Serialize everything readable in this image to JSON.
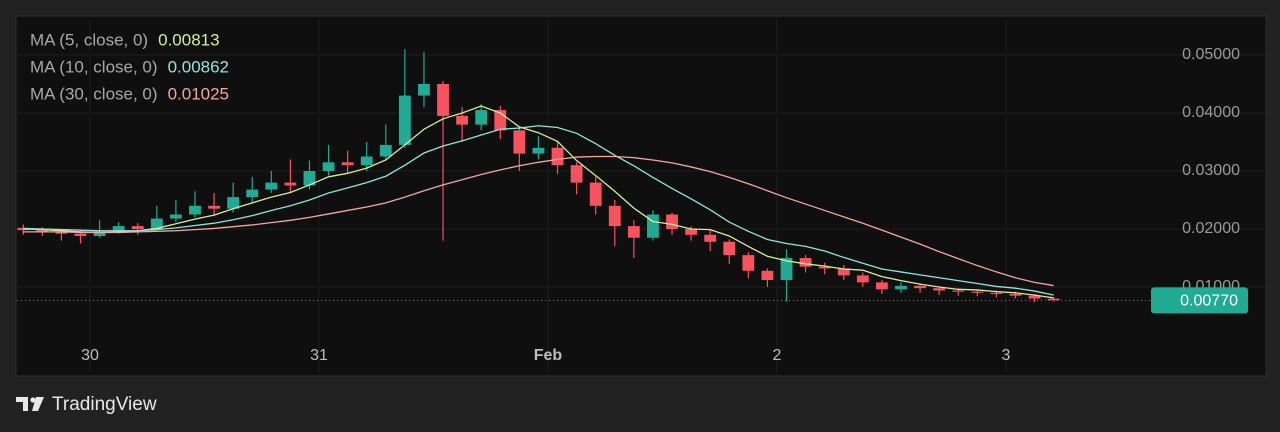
{
  "brand": "TradingView",
  "chart_data": {
    "type": "candlestick",
    "x": [
      -7,
      -5,
      -3,
      -1,
      1,
      3,
      5,
      7,
      9,
      11,
      13,
      15,
      17,
      19,
      21,
      23,
      25,
      27,
      29,
      31,
      33,
      35,
      37,
      39,
      41,
      43,
      45,
      47,
      49,
      51,
      53,
      55,
      57,
      59,
      61,
      63,
      65,
      67,
      69,
      71,
      73,
      75,
      77,
      79,
      81,
      83,
      85,
      87,
      89,
      91,
      93,
      95,
      97,
      99,
      101
    ],
    "open": [
      0.0202,
      0.0198,
      0.0195,
      0.0192,
      0.0188,
      0.0196,
      0.0205,
      0.02,
      0.0218,
      0.0225,
      0.024,
      0.0235,
      0.0255,
      0.0268,
      0.028,
      0.0275,
      0.03,
      0.0315,
      0.031,
      0.0325,
      0.0345,
      0.043,
      0.045,
      0.0395,
      0.038,
      0.0405,
      0.037,
      0.033,
      0.034,
      0.031,
      0.028,
      0.024,
      0.0205,
      0.0185,
      0.0225,
      0.02,
      0.019,
      0.0178,
      0.0155,
      0.0128,
      0.0112,
      0.015,
      0.0135,
      0.0132,
      0.012,
      0.0108,
      0.0096,
      0.0102,
      0.0098,
      0.0094,
      0.0092,
      0.009,
      0.0088,
      0.0085,
      0.008
    ],
    "high": [
      0.0208,
      0.0203,
      0.02,
      0.0197,
      0.0215,
      0.0212,
      0.021,
      0.024,
      0.025,
      0.0265,
      0.0262,
      0.028,
      0.029,
      0.03,
      0.032,
      0.0318,
      0.0345,
      0.0335,
      0.035,
      0.038,
      0.051,
      0.0505,
      0.0455,
      0.041,
      0.0415,
      0.0412,
      0.0375,
      0.036,
      0.035,
      0.0315,
      0.029,
      0.025,
      0.0215,
      0.0232,
      0.0228,
      0.0205,
      0.0198,
      0.0182,
      0.016,
      0.0132,
      0.0165,
      0.0155,
      0.0142,
      0.0138,
      0.0125,
      0.0112,
      0.0108,
      0.0105,
      0.01,
      0.0097,
      0.0096,
      0.0094,
      0.0092,
      0.0088,
      0.0082
    ],
    "low": [
      0.019,
      0.0188,
      0.018,
      0.0175,
      0.0185,
      0.0192,
      0.019,
      0.0198,
      0.0212,
      0.022,
      0.0222,
      0.0228,
      0.0245,
      0.0262,
      0.0262,
      0.0268,
      0.0292,
      0.0295,
      0.03,
      0.0318,
      0.034,
      0.041,
      0.018,
      0.035,
      0.037,
      0.0355,
      0.03,
      0.032,
      0.0295,
      0.026,
      0.0225,
      0.017,
      0.015,
      0.018,
      0.019,
      0.018,
      0.0162,
      0.014,
      0.0115,
      0.01,
      0.0075,
      0.0125,
      0.0122,
      0.0112,
      0.01,
      0.0088,
      0.009,
      0.009,
      0.0086,
      0.0085,
      0.0084,
      0.0082,
      0.008,
      0.0074,
      0.0075
    ],
    "close": [
      0.0198,
      0.0195,
      0.0192,
      0.0188,
      0.0196,
      0.0205,
      0.02,
      0.0218,
      0.0225,
      0.024,
      0.0235,
      0.0255,
      0.0268,
      0.028,
      0.0275,
      0.03,
      0.0315,
      0.031,
      0.0325,
      0.0345,
      0.043,
      0.045,
      0.0395,
      0.038,
      0.0405,
      0.037,
      0.033,
      0.034,
      0.031,
      0.028,
      0.024,
      0.0205,
      0.0185,
      0.0225,
      0.02,
      0.019,
      0.0178,
      0.0155,
      0.0128,
      0.0112,
      0.015,
      0.0135,
      0.0132,
      0.012,
      0.0108,
      0.0096,
      0.0102,
      0.0098,
      0.0094,
      0.0092,
      0.009,
      0.0088,
      0.0085,
      0.008,
      0.0077
    ],
    "up_color": "#22ab94",
    "down_color": "#f7525f",
    "last_price_label": "0.00770",
    "series": [
      {
        "name": "MA (5, close, 0)",
        "color": "#d6ed9b",
        "values": [
          0.02,
          0.0199,
          0.0197,
          0.0195,
          0.0194,
          0.0195,
          0.0197,
          0.0201,
          0.0209,
          0.0217,
          0.0224,
          0.0235,
          0.0245,
          0.0255,
          0.0263,
          0.0276,
          0.029,
          0.0296,
          0.0305,
          0.0319,
          0.0345,
          0.0372,
          0.039,
          0.04,
          0.0412,
          0.04,
          0.0376,
          0.0366,
          0.0351,
          0.0318,
          0.0292,
          0.0265,
          0.0236,
          0.0213,
          0.0208,
          0.02,
          0.0199,
          0.0188,
          0.017,
          0.0153,
          0.0145,
          0.014,
          0.0136,
          0.0131,
          0.0129,
          0.0118,
          0.0111,
          0.0105,
          0.01,
          0.0096,
          0.0095,
          0.0092,
          0.009,
          0.0086,
          0.00813
        ]
      },
      {
        "name": "MA (10, close, 0)",
        "color": "#8ee6d6",
        "values": [
          0.0201,
          0.02,
          0.0199,
          0.0198,
          0.0197,
          0.0197,
          0.0197,
          0.0199,
          0.0202,
          0.0206,
          0.021,
          0.0216,
          0.0223,
          0.0232,
          0.024,
          0.025,
          0.0262,
          0.0271,
          0.028,
          0.0291,
          0.031,
          0.0331,
          0.0343,
          0.0352,
          0.0362,
          0.0372,
          0.0374,
          0.0378,
          0.0375,
          0.0365,
          0.0347,
          0.0327,
          0.0309,
          0.0289,
          0.027,
          0.0252,
          0.0233,
          0.0212,
          0.0196,
          0.0182,
          0.0175,
          0.017,
          0.0162,
          0.0151,
          0.0141,
          0.0131,
          0.0126,
          0.0121,
          0.0116,
          0.0111,
          0.0106,
          0.0101,
          0.0098,
          0.0093,
          0.00862
        ]
      },
      {
        "name": "MA (30, close, 0)",
        "color": "#f4a6a1",
        "values": [
          0.0195,
          0.0195,
          0.0195,
          0.0194,
          0.0194,
          0.0194,
          0.0195,
          0.0196,
          0.0197,
          0.0199,
          0.0201,
          0.0204,
          0.0207,
          0.0211,
          0.0215,
          0.022,
          0.0226,
          0.0232,
          0.0238,
          0.0245,
          0.0255,
          0.0266,
          0.0276,
          0.0285,
          0.0294,
          0.0302,
          0.0309,
          0.0315,
          0.032,
          0.0324,
          0.0325,
          0.0325,
          0.0323,
          0.0319,
          0.0314,
          0.0307,
          0.0299,
          0.0289,
          0.0278,
          0.0266,
          0.0254,
          0.0243,
          0.0232,
          0.0221,
          0.021,
          0.0198,
          0.0186,
          0.0174,
          0.0161,
          0.0149,
          0.0137,
          0.0126,
          0.0116,
          0.0108,
          0.01025
        ]
      }
    ],
    "xlim": [
      -7.55,
      111.1
    ],
    "xticks": [
      {
        "value": 0,
        "label": "30"
      },
      {
        "value": 24,
        "label": "31"
      },
      {
        "value": 48,
        "label": "Feb"
      },
      {
        "value": 72,
        "label": "2"
      },
      {
        "value": 96,
        "label": "3"
      }
    ],
    "ylim": [
      -0.00534,
      0.05672
    ],
    "yticks": [
      {
        "value": 0.01,
        "label": "0.01000"
      },
      {
        "value": 0.02,
        "label": "0.02000"
      },
      {
        "value": 0.03,
        "label": "0.03000"
      },
      {
        "value": 0.04,
        "label": "0.04000"
      },
      {
        "value": 0.05,
        "label": "0.05000"
      }
    ],
    "grid": true
  }
}
